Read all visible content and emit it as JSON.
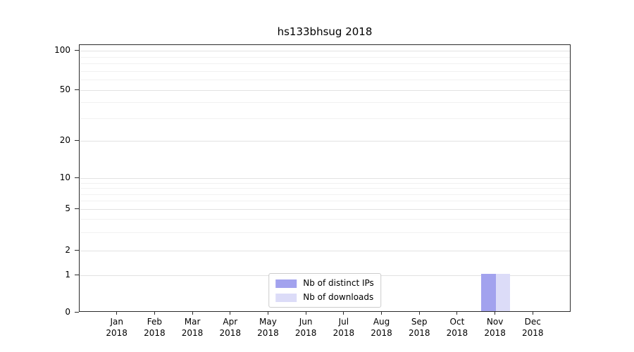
{
  "title": "hs133bhsug 2018",
  "chart_data": {
    "type": "bar",
    "title": "hs133bhsug 2018",
    "categories": [
      "Jan 2018",
      "Feb 2018",
      "Mar 2018",
      "Apr 2018",
      "May 2018",
      "Jun 2018",
      "Jul 2018",
      "Aug 2018",
      "Sep 2018",
      "Oct 2018",
      "Nov 2018",
      "Dec 2018"
    ],
    "series": [
      {
        "name": "Nb of distinct IPs",
        "color": "#a2a2ee",
        "values": [
          0,
          0,
          0,
          0,
          0,
          0,
          0,
          0,
          0,
          0,
          1,
          0
        ]
      },
      {
        "name": "Nb of downloads",
        "color": "#dcdcf8",
        "values": [
          0,
          0,
          0,
          0,
          0,
          0,
          0,
          0,
          0,
          0,
          1,
          0
        ]
      }
    ],
    "yticks": [
      0,
      1,
      2,
      5,
      10,
      20,
      50,
      100
    ],
    "ylim": [
      0,
      120
    ],
    "yscale": "symlog",
    "xlabel": "",
    "ylabel": "",
    "grid": true,
    "legend_position": "lower center"
  },
  "colors": {
    "grid_major": "#e2e2e2",
    "grid_minor": "#f1f1f1",
    "spine": "#2b2b2b",
    "legend_border": "#cccccc"
  }
}
